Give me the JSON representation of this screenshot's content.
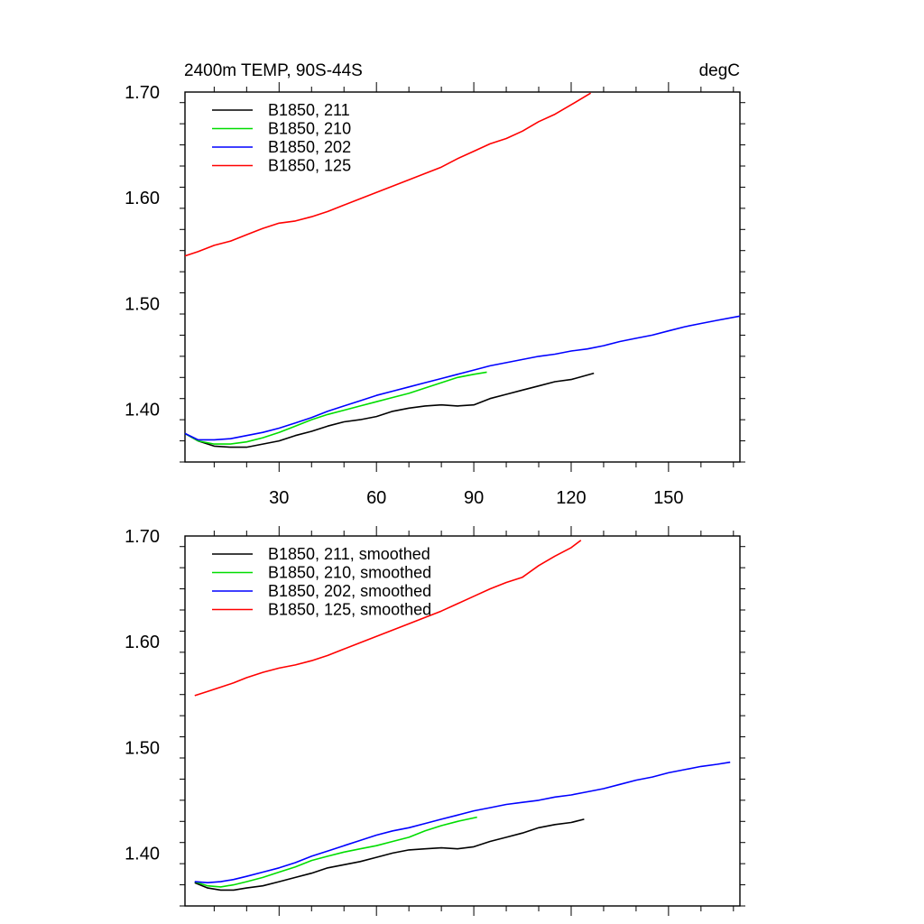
{
  "figure": {
    "title": "2400m TEMP, 90S-44S",
    "units": "degC"
  },
  "chart_data": [
    {
      "type": "line",
      "title": "2400m TEMP, 90S-44S",
      "units": "degC",
      "xlim": [
        1,
        172
      ],
      "ylim": [
        1.35,
        1.7
      ],
      "xticks": [
        30,
        60,
        90,
        120,
        150
      ],
      "xtick_labels": [
        "30",
        "60",
        "90",
        "120",
        "150"
      ],
      "yticks": [
        1.4,
        1.5,
        1.6,
        1.7
      ],
      "ytick_labels": [
        "1.40",
        "1.50",
        "1.60",
        "1.70"
      ],
      "legend_position": "top-left",
      "series": [
        {
          "name": "B1850, 211",
          "color": "#000000",
          "x": [
            1,
            5,
            10,
            15,
            20,
            25,
            30,
            35,
            40,
            45,
            50,
            55,
            60,
            65,
            70,
            75,
            80,
            85,
            90,
            95,
            100,
            105,
            110,
            115,
            120,
            127
          ],
          "y": [
            1.377,
            1.37,
            1.365,
            1.364,
            1.364,
            1.367,
            1.37,
            1.375,
            1.379,
            1.384,
            1.388,
            1.39,
            1.393,
            1.398,
            1.401,
            1.403,
            1.404,
            1.403,
            1.404,
            1.41,
            1.414,
            1.418,
            1.422,
            1.426,
            1.428,
            1.434
          ]
        },
        {
          "name": "B1850, 210",
          "color": "#00dd00",
          "x": [
            1,
            5,
            10,
            15,
            20,
            25,
            30,
            35,
            40,
            45,
            50,
            55,
            60,
            65,
            70,
            75,
            80,
            85,
            90,
            94
          ],
          "y": [
            1.377,
            1.37,
            1.367,
            1.367,
            1.369,
            1.373,
            1.378,
            1.384,
            1.39,
            1.395,
            1.399,
            1.403,
            1.407,
            1.411,
            1.415,
            1.42,
            1.425,
            1.43,
            1.433,
            1.435
          ]
        },
        {
          "name": "B1850, 202",
          "color": "#0000ff",
          "x": [
            1,
            5,
            10,
            15,
            20,
            25,
            30,
            35,
            40,
            45,
            50,
            55,
            60,
            65,
            70,
            75,
            80,
            85,
            90,
            95,
            100,
            105,
            110,
            115,
            120,
            125,
            130,
            135,
            140,
            145,
            150,
            155,
            160,
            165,
            172
          ],
          "y": [
            1.377,
            1.371,
            1.371,
            1.372,
            1.375,
            1.378,
            1.382,
            1.387,
            1.392,
            1.398,
            1.403,
            1.408,
            1.413,
            1.417,
            1.421,
            1.425,
            1.429,
            1.433,
            1.437,
            1.441,
            1.444,
            1.447,
            1.45,
            1.452,
            1.455,
            1.457,
            1.46,
            1.464,
            1.467,
            1.47,
            1.474,
            1.478,
            1.481,
            1.484,
            1.488
          ]
        },
        {
          "name": "B1850, 125",
          "color": "#ff0000",
          "x": [
            1,
            5,
            10,
            15,
            20,
            25,
            30,
            35,
            40,
            45,
            50,
            55,
            60,
            65,
            70,
            75,
            80,
            85,
            90,
            95,
            100,
            105,
            110,
            115,
            120,
            126
          ],
          "y": [
            1.545,
            1.549,
            1.555,
            1.559,
            1.565,
            1.571,
            1.576,
            1.578,
            1.582,
            1.587,
            1.593,
            1.599,
            1.605,
            1.611,
            1.617,
            1.623,
            1.629,
            1.637,
            1.644,
            1.651,
            1.656,
            1.663,
            1.672,
            1.679,
            1.688,
            1.699
          ]
        }
      ]
    },
    {
      "type": "line",
      "title": "",
      "xlim": [
        1,
        172
      ],
      "ylim": [
        1.35,
        1.7
      ],
      "xticks": [
        30,
        60,
        90,
        120,
        150
      ],
      "xtick_labels": [],
      "yticks": [
        1.4,
        1.5,
        1.6,
        1.7
      ],
      "ytick_labels": [
        "1.40",
        "1.50",
        "1.60",
        "1.70"
      ],
      "legend_position": "top-left",
      "series": [
        {
          "name": "B1850, 211, smoothed",
          "color": "#000000",
          "x": [
            4,
            8,
            12,
            16,
            20,
            25,
            30,
            35,
            40,
            45,
            50,
            55,
            60,
            65,
            70,
            75,
            80,
            85,
            90,
            95,
            100,
            105,
            110,
            115,
            120,
            124
          ],
          "y": [
            1.372,
            1.367,
            1.365,
            1.365,
            1.367,
            1.369,
            1.373,
            1.377,
            1.381,
            1.386,
            1.389,
            1.392,
            1.396,
            1.4,
            1.403,
            1.404,
            1.405,
            1.404,
            1.406,
            1.411,
            1.415,
            1.419,
            1.424,
            1.427,
            1.429,
            1.432
          ]
        },
        {
          "name": "B1850, 210, smoothed",
          "color": "#00dd00",
          "x": [
            4,
            8,
            12,
            16,
            20,
            25,
            30,
            35,
            40,
            45,
            50,
            55,
            60,
            65,
            70,
            75,
            80,
            85,
            91
          ],
          "y": [
            1.373,
            1.369,
            1.368,
            1.37,
            1.373,
            1.377,
            1.382,
            1.387,
            1.393,
            1.397,
            1.401,
            1.404,
            1.407,
            1.411,
            1.415,
            1.421,
            1.426,
            1.43,
            1.434
          ]
        },
        {
          "name": "B1850, 202, smoothed",
          "color": "#0000ff",
          "x": [
            4,
            8,
            12,
            16,
            20,
            25,
            30,
            35,
            40,
            45,
            50,
            55,
            60,
            65,
            70,
            75,
            80,
            85,
            90,
            95,
            100,
            105,
            110,
            115,
            120,
            125,
            130,
            135,
            140,
            145,
            150,
            155,
            160,
            165,
            169
          ],
          "y": [
            1.373,
            1.372,
            1.373,
            1.375,
            1.378,
            1.382,
            1.386,
            1.391,
            1.397,
            1.402,
            1.407,
            1.412,
            1.417,
            1.421,
            1.424,
            1.428,
            1.432,
            1.436,
            1.44,
            1.443,
            1.446,
            1.448,
            1.45,
            1.453,
            1.455,
            1.458,
            1.461,
            1.465,
            1.469,
            1.472,
            1.476,
            1.479,
            1.482,
            1.484,
            1.486
          ]
        },
        {
          "name": "B1850, 125, smoothed",
          "color": "#ff0000",
          "x": [
            4,
            8,
            12,
            16,
            20,
            25,
            30,
            35,
            40,
            45,
            50,
            55,
            60,
            65,
            70,
            75,
            80,
            85,
            90,
            95,
            100,
            105,
            110,
            115,
            120,
            123
          ],
          "y": [
            1.549,
            1.553,
            1.557,
            1.561,
            1.566,
            1.571,
            1.575,
            1.578,
            1.582,
            1.587,
            1.593,
            1.599,
            1.605,
            1.611,
            1.617,
            1.623,
            1.629,
            1.636,
            1.643,
            1.65,
            1.656,
            1.661,
            1.672,
            1.681,
            1.689,
            1.696
          ]
        }
      ]
    }
  ]
}
